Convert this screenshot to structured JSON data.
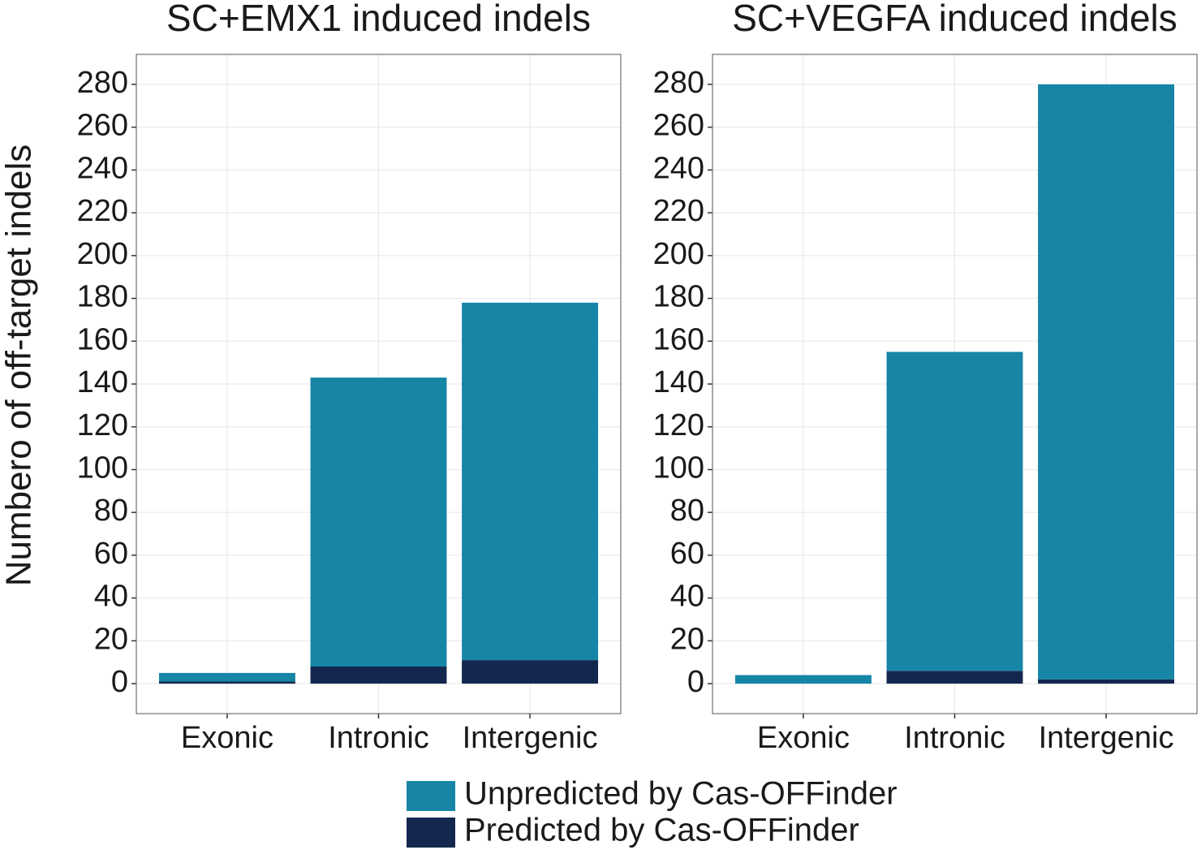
{
  "chart_data": [
    {
      "type": "stacked-bar",
      "title": "SC+EMX1 induced indels",
      "y_label": "Numbero of off-target indels",
      "categories": [
        "Exonic",
        "Intronic",
        "Intergenic"
      ],
      "series": [
        {
          "name": "Predicted by Cas-OFFinder",
          "color": "#14284f",
          "values": [
            1,
            8,
            11
          ]
        },
        {
          "name": "Unpredicted by Cas-OFFinder",
          "color": "#1685a6",
          "values": [
            4,
            135,
            167
          ]
        }
      ],
      "ylim": [
        -14,
        294
      ],
      "yticks": [
        0,
        20,
        40,
        60,
        80,
        100,
        120,
        140,
        160,
        180,
        200,
        220,
        240,
        260,
        280
      ],
      "grid": true
    },
    {
      "type": "stacked-bar",
      "title": "SC+VEGFA induced indels",
      "categories": [
        "Exonic",
        "Intronic",
        "Intergenic"
      ],
      "series": [
        {
          "color": "#14284f",
          "values": [
            0,
            6,
            2
          ]
        },
        {
          "color": "#1685a6",
          "values": [
            4,
            149,
            278
          ]
        }
      ],
      "ylim": [
        -14,
        294
      ],
      "yticks": [
        0,
        20,
        40,
        60,
        80,
        100,
        120,
        140,
        160,
        180,
        200,
        220,
        240,
        260,
        280
      ],
      "grid": true
    }
  ]
}
